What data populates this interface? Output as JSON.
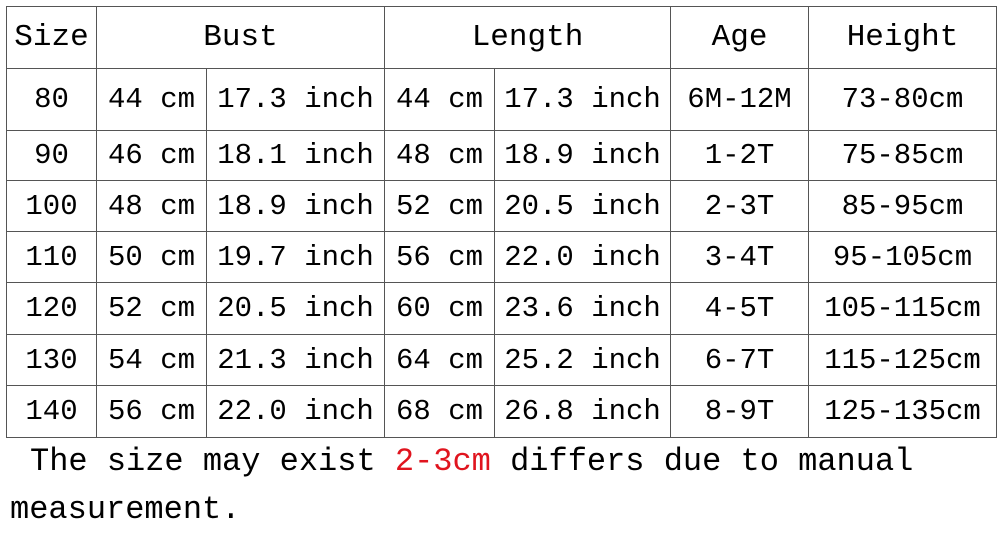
{
  "table": {
    "header": [
      "Size",
      "Bust",
      "Length",
      "Age",
      "Height"
    ],
    "rows": [
      [
        "80",
        "44 cm",
        "17.3 inch",
        "44 cm",
        "17.3 inch",
        "6M-12M",
        "73-80cm"
      ],
      [
        "90",
        "46 cm",
        "18.1 inch",
        "48 cm",
        "18.9 inch",
        "1-2T",
        "75-85cm"
      ],
      [
        "100",
        "48 cm",
        "18.9 inch",
        "52 cm",
        "20.5 inch",
        "2-3T",
        "85-95cm"
      ],
      [
        "110",
        "50 cm",
        "19.7 inch",
        "56 cm",
        "22.0 inch",
        "3-4T",
        "95-105cm"
      ],
      [
        "120",
        "52 cm",
        "20.5 inch",
        "60 cm",
        "23.6 inch",
        "4-5T",
        "105-115cm"
      ],
      [
        "130",
        "54 cm",
        "21.3 inch",
        "64 cm",
        "25.2 inch",
        "6-7T",
        "115-125cm"
      ],
      [
        "140",
        "56 cm",
        "22.0 inch",
        "68 cm",
        "26.8 inch",
        "8-9T",
        "125-135cm"
      ]
    ]
  },
  "note": {
    "before": "The size may exist",
    "highlight": "2-3cm",
    "after": "differs due to manual measurement."
  }
}
